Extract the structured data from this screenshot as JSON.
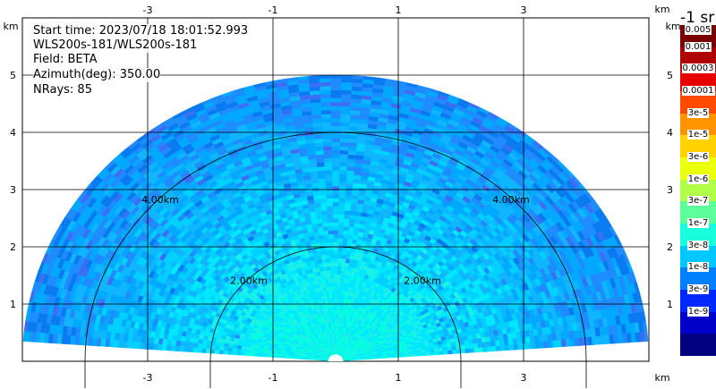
{
  "info": {
    "start_time": "Start time: 2023/07/18 18:01:52.993",
    "instrument": "WLS200s-181/WLS200s-181",
    "field": "Field: BETA",
    "azimuth": "Azimuth(deg): 350.00",
    "nrays": "NRays: 85"
  },
  "axis_unit": "km",
  "colorbar": {
    "title": "-1 sr",
    "labels": [
      "0.005",
      "0.001",
      "0.0003",
      "0.0001",
      "3e-5",
      "1e-5",
      "3e-6",
      "1e-6",
      "3e-7",
      "1e-7",
      "3e-8",
      "1e-8",
      "3e-9",
      "1e-9"
    ],
    "colors": [
      "#7a0000",
      "#b00000",
      "#e80000",
      "#ff4a00",
      "#ff9400",
      "#ffd200",
      "#ecff0c",
      "#b0ff46",
      "#5dff9b",
      "#19ffdd",
      "#00c8ff",
      "#0080ff",
      "#0028ff",
      "#0000c8",
      "#000080"
    ]
  },
  "chart_data": {
    "type": "heatmap",
    "title": "",
    "xlabel": "km",
    "ylabel": "km",
    "xlim": [
      -5.0,
      5.0
    ],
    "ylim": [
      0.0,
      5.6
    ],
    "x_ticks": [
      "-3",
      "-1",
      "1",
      "3"
    ],
    "y_ticks": [
      "1",
      "2",
      "3",
      "4",
      "5"
    ],
    "range_rings": [
      {
        "radius": 2.0,
        "label": "2.00km"
      },
      {
        "radius": 4.0,
        "label": "4.00km"
      }
    ],
    "sector": {
      "elevation_start_deg": 4,
      "elevation_end_deg": 176,
      "max_range_km": 5.0
    },
    "grid": true
  }
}
